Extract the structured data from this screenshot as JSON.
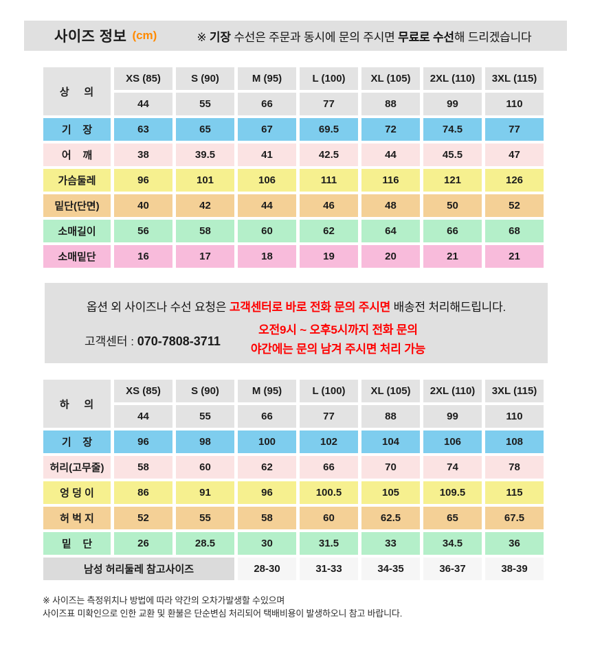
{
  "colors": {
    "header_bar_bg": "#E0E0E0",
    "cell_header_bg": "#E3E3E3",
    "blue": "#7ECDEE",
    "pink_light": "#FBE3E3",
    "yellow": "#F6F08F",
    "tan": "#F4D096",
    "mint": "#B4EFC9",
    "pink": "#F8BBDB",
    "ref_label_bg": "#DBDBDB",
    "ref_value_bg": "#F6F6F6",
    "table_red": "#E8193C",
    "notice_red": "#FE0000",
    "orange": "#FF8A00"
  },
  "header_bar": {
    "title": "사이즈 정보",
    "unit": "(cm)",
    "note_prefix": "※ ",
    "note_bold1": "기장",
    "note_mid": " 수선은 주문과 동시에 문의 주시면 ",
    "note_bold2": "무료로 수선",
    "note_suffix": "해 드리겠습니다"
  },
  "tables": [
    {
      "corner_label": "상    의",
      "size_headers": [
        "XS (85)",
        "S (90)",
        "M (95)",
        "L (100)",
        "XL (105)",
        "2XL (110)",
        "3XL (115)"
      ],
      "size_numbers": [
        "44",
        "55",
        "66",
        "77",
        "88",
        "99",
        "110"
      ],
      "rows": [
        {
          "label": "기    장",
          "color": "blue",
          "values": [
            "63",
            "65",
            "67",
            "69.5",
            "72",
            "74.5",
            "77"
          ]
        },
        {
          "label": "어    깨",
          "color": "pink_light",
          "values": [
            "38",
            "39.5",
            "41",
            "42.5",
            "44",
            "45.5",
            "47"
          ]
        },
        {
          "label": "가슴둘레",
          "color": "yellow",
          "values": [
            "96",
            "101",
            "106",
            "111",
            "116",
            "121",
            "126"
          ]
        },
        {
          "label": "밑단(단면)",
          "color": "tan",
          "values": [
            "40",
            "42",
            "44",
            "46",
            "48",
            "50",
            "52"
          ]
        },
        {
          "label": "소매길이",
          "color": "mint",
          "values": [
            "56",
            "58",
            "60",
            "62",
            "64",
            "66",
            "68"
          ]
        },
        {
          "label": "소매밑단",
          "color": "pink",
          "values": [
            "16",
            "17",
            "18",
            "19",
            "20",
            "21",
            "21"
          ]
        }
      ]
    },
    {
      "corner_label": "하    의",
      "size_headers": [
        "XS (85)",
        "S (90)",
        "M (95)",
        "L (100)",
        "XL (105)",
        "2XL (110)",
        "3XL (115)"
      ],
      "size_numbers": [
        "44",
        "55",
        "66",
        "77",
        "88",
        "99",
        "110"
      ],
      "rows": [
        {
          "label": "기    장",
          "color": "blue",
          "values": [
            "96",
            "98",
            "100",
            "102",
            "104",
            "106",
            "108"
          ]
        },
        {
          "label": "허리(고무줄)",
          "color": "pink_light",
          "values": [
            "58",
            "60",
            "62",
            "66",
            "70",
            "74",
            "78"
          ]
        },
        {
          "label": "엉 덩 이",
          "color": "yellow",
          "values": [
            "86",
            "91",
            "96",
            "100.5",
            "105",
            "109.5",
            "115"
          ]
        },
        {
          "label": "허 벅 지",
          "color": "tan",
          "values": [
            "52",
            "55",
            "58",
            "60",
            "62.5",
            "65",
            "67.5"
          ]
        },
        {
          "label": "밑    단",
          "color": "mint",
          "values": [
            "26",
            "28.5",
            "30",
            "31.5",
            "33",
            "34.5",
            "36"
          ]
        }
      ],
      "footer_row": {
        "label": "남성 허리둘레 참고사이즈",
        "values": [
          "28-30",
          "31-33",
          "34-35",
          "36-37",
          "38-39"
        ]
      }
    }
  ],
  "notice": {
    "line1_prefix": "옵션 외 사이즈나 수선 요청은 ",
    "line1_red": "고객센터로 바로 전화 문의 주시면",
    "line1_suffix": " 배송전 처리해드립니다.",
    "phone_label": "고객센터 : ",
    "phone_number": "070-7808-3711",
    "hours_line1": "오전9시 ~ 오후5시까지 전화 문의",
    "hours_line2": "야간에는 문의 남겨 주시면 처리 가능"
  },
  "footnote": {
    "line1": "※ 사이즈는 측정위치나 방법에 따라 약간의 오차가발생할 수있으며",
    "line2": "사이즈표 미확인으로 인한 교환 및 환불은 단순변심 처리되어 택배비용이 발생하오니 참고 바랍니다."
  }
}
